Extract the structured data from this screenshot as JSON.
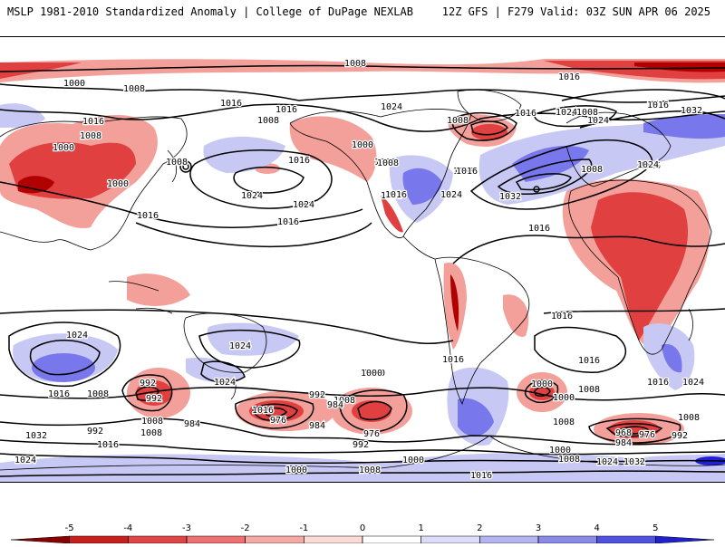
{
  "header": {
    "left": "MSLP 1981-2010 Standardized Anomaly | College of DuPage NEXLAB",
    "right": "12Z GFS | F279 Valid: 03Z SUN APR 06 2025"
  },
  "colors": {
    "ocean": "#ffffff",
    "coast": "#000000",
    "neg_strong": "#b00000",
    "neg_mid": "#e04040",
    "neg_light": "#f4a09a",
    "pos_light": "#c8c8f4",
    "pos_mid": "#7878ec",
    "pos_strong": "#2020d8"
  },
  "colorbar": {
    "ticks": [
      "-5",
      "-4",
      "-3",
      "-2",
      "-1",
      "0",
      "1",
      "2",
      "3",
      "4",
      "5"
    ],
    "colors": [
      "#8c0000",
      "#c81e1e",
      "#e04444",
      "#ee7070",
      "#f6a8a4",
      "#fcdad6",
      "#ffffff",
      "#dcdcf8",
      "#b4b4f0",
      "#8a8ae8",
      "#5050e0",
      "#2020d0"
    ]
  },
  "isobar_labels": [
    {
      "text": "1008"
    },
    {
      "text": "992"
    },
    {
      "text": "1000"
    },
    {
      "text": "1016"
    },
    {
      "text": "1008"
    },
    {
      "text": "1016"
    },
    {
      "text": "1024"
    },
    {
      "text": "1016"
    },
    {
      "text": "1008"
    },
    {
      "text": "1016"
    },
    {
      "text": "1024"
    },
    {
      "text": "1008"
    },
    {
      "text": "1008"
    },
    {
      "text": "1024"
    },
    {
      "text": "1032"
    },
    {
      "text": "1016"
    },
    {
      "text": "1008"
    },
    {
      "text": "1000"
    },
    {
      "text": "1008"
    },
    {
      "text": "1016"
    },
    {
      "text": "1000"
    },
    {
      "text": "1016"
    },
    {
      "text": "1024"
    },
    {
      "text": "1016"
    },
    {
      "text": "1008"
    },
    {
      "text": "1024"
    },
    {
      "text": "1032"
    },
    {
      "text": "1016"
    },
    {
      "text": "1008"
    },
    {
      "text": "1016"
    },
    {
      "text": "1008"
    },
    {
      "text": "1008"
    },
    {
      "text": "1016"
    },
    {
      "text": "1008"
    },
    {
      "text": "1016"
    },
    {
      "text": "1024"
    },
    {
      "text": "1016"
    },
    {
      "text": "1024"
    },
    {
      "text": "1000"
    },
    {
      "text": "992"
    },
    {
      "text": "1016"
    },
    {
      "text": "1008"
    },
    {
      "text": "1024"
    },
    {
      "text": "1016"
    },
    {
      "text": "1008"
    },
    {
      "text": "1000"
    },
    {
      "text": "992"
    },
    {
      "text": "976"
    },
    {
      "text": "984"
    },
    {
      "text": "1000"
    },
    {
      "text": "992"
    },
    {
      "text": "984"
    },
    {
      "text": "976"
    },
    {
      "text": "1000"
    },
    {
      "text": "992"
    },
    {
      "text": "1008"
    },
    {
      "text": "984"
    },
    {
      "text": "1008"
    },
    {
      "text": "1016"
    },
    {
      "text": "1016"
    },
    {
      "text": "1024"
    },
    {
      "text": "1016"
    },
    {
      "text": "1008"
    },
    {
      "text": "1000"
    },
    {
      "text": "1008"
    },
    {
      "text": "968"
    },
    {
      "text": "976"
    },
    {
      "text": "984"
    },
    {
      "text": "992"
    },
    {
      "text": "1000"
    },
    {
      "text": "1008"
    },
    {
      "text": "1024"
    },
    {
      "text": "1032"
    },
    {
      "text": "1016"
    },
    {
      "text": "1024"
    },
    {
      "text": "1032"
    },
    {
      "text": "1024"
    },
    {
      "text": "1016"
    },
    {
      "text": "1000"
    },
    {
      "text": "1008"
    },
    {
      "text": "992"
    },
    {
      "text": "1008"
    },
    {
      "text": "1000"
    },
    {
      "text": "1024"
    },
    {
      "text": "1032"
    },
    {
      "text": "1016"
    },
    {
      "text": "1008"
    },
    {
      "text": "1024"
    },
    {
      "text": "1016"
    }
  ]
}
